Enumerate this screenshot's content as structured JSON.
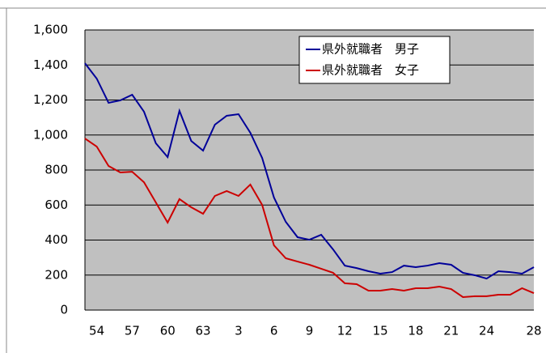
{
  "chart_data": {
    "type": "line",
    "categories": [
      null,
      "54",
      null,
      null,
      "57",
      null,
      null,
      "60",
      null,
      null,
      "63",
      null,
      null,
      "3",
      null,
      null,
      "6",
      null,
      null,
      "9",
      null,
      null,
      "12",
      null,
      null,
      "15",
      null,
      null,
      "18",
      null,
      null,
      "21",
      null,
      null,
      "24",
      null,
      null,
      null,
      "28"
    ],
    "series": [
      {
        "name": "県外就職者　男子",
        "color": "#000099",
        "values": [
          1410,
          1322,
          1184,
          1198,
          1230,
          1133,
          953,
          874,
          1138,
          966,
          911,
          1059,
          1110,
          1119,
          1013,
          869,
          643,
          504,
          416,
          402,
          430,
          347,
          254,
          240,
          222,
          208,
          217,
          254,
          245,
          254,
          268,
          259,
          213,
          199,
          180,
          222,
          217,
          208,
          245
        ]
      },
      {
        "name": "県外就職者　女子",
        "color": "#cc0000",
        "values": [
          980,
          934,
          823,
          786,
          790,
          730,
          615,
          500,
          634,
          587,
          550,
          652,
          680,
          652,
          717,
          601,
          370,
          296,
          277,
          259,
          236,
          213,
          153,
          148,
          111,
          111,
          120,
          111,
          125,
          125,
          134,
          120,
          74,
          79,
          79,
          88,
          88,
          125,
          97
        ]
      }
    ],
    "ylim": [
      0,
      1600
    ],
    "yticks": [
      0,
      200,
      400,
      600,
      800,
      {
        "value": 1000,
        "label": "1,000"
      },
      {
        "value": 1200,
        "label": "1,200"
      },
      {
        "value": 1400,
        "label": "1,400"
      },
      {
        "value": 1600,
        "label": "1,600"
      }
    ],
    "grid": true,
    "legend": "top-right",
    "background": "#c0c0c0"
  }
}
